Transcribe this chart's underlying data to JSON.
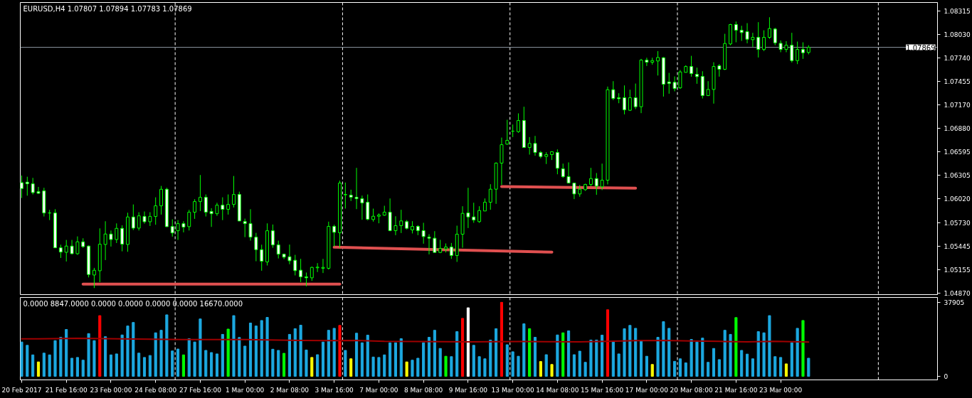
{
  "chart_data": [
    {
      "type": "candlestick",
      "title": "EURUSD,H4 1.07807 1.07894 1.07783 1.07869",
      "tick_labels": "y",
      "grid": false,
      "categories": [
        null,
        null,
        null,
        null,
        null,
        null,
        null,
        null,
        null,
        null,
        null,
        null,
        null,
        null,
        null,
        null,
        null,
        null,
        null,
        null,
        null,
        null,
        null,
        null,
        null,
        null,
        null,
        null,
        null,
        null,
        null,
        null,
        null,
        null,
        null,
        null,
        null,
        null,
        null,
        null,
        null,
        null,
        null,
        null,
        null,
        null,
        null,
        null,
        null,
        null,
        null,
        null,
        null,
        null,
        null,
        null,
        null,
        null,
        null,
        null,
        null,
        null,
        null,
        null,
        null,
        null,
        null,
        null,
        null,
        null,
        null,
        null,
        null,
        null,
        null,
        null,
        null,
        null,
        null,
        null,
        null,
        null,
        null,
        null,
        null,
        null,
        null,
        null,
        null,
        null,
        null,
        null,
        null,
        null,
        null,
        null,
        null,
        null,
        null,
        null,
        null,
        null,
        null,
        null,
        null,
        null,
        null,
        null,
        null,
        null,
        null,
        null,
        null,
        null,
        null,
        null,
        null,
        null,
        null,
        null,
        null,
        null,
        null,
        null,
        null,
        null,
        null,
        null,
        null,
        null,
        null,
        null,
        null,
        null,
        null,
        null,
        null,
        null,
        null,
        null,
        null,
        null,
        null,
        null,
        null,
        null,
        null,
        null,
        null,
        null,
        null,
        null,
        null,
        null,
        null,
        null,
        null,
        null,
        null,
        null,
        null,
        null,
        null,
        null,
        null
      ],
      "ylim": [
        1.04852,
        1.08416
      ],
      "yticks": [
        {
          "value": 1.0487,
          "label": "1.04870"
        },
        {
          "value": 1.05155,
          "label": "1.05155"
        },
        {
          "value": 1.05445,
          "label": "1.05445"
        },
        {
          "value": 1.0573,
          "label": "1.05730"
        },
        {
          "value": 1.0602,
          "label": "1.06020"
        },
        {
          "value": 1.06305,
          "label": "1.06305"
        },
        {
          "value": 1.06595,
          "label": "1.06595"
        },
        {
          "value": 1.0688,
          "label": "1.06880"
        },
        {
          "value": 1.0717,
          "label": "1.07170"
        },
        {
          "value": 1.07455,
          "label": "1.07455"
        },
        {
          "value": 1.0774,
          "label": "1.07740"
        },
        {
          "value": 1.0803,
          "label": "1.08030"
        },
        {
          "value": 1.08315,
          "label": "1.08315"
        }
      ],
      "ohlc": [
        [
          1.06218,
          1.06305,
          1.0603,
          1.06146
        ],
        [
          1.06224,
          1.0629,
          1.06059,
          1.06204
        ],
        [
          1.06204,
          1.06276,
          1.06074,
          1.06097
        ],
        [
          1.06108,
          1.06166,
          1.06079,
          1.06088
        ],
        [
          1.06117,
          1.06155,
          1.05805,
          1.05848
        ],
        [
          1.05848,
          1.05886,
          1.05761,
          1.05848
        ],
        [
          1.05848,
          1.05894,
          1.0542,
          1.05423
        ],
        [
          1.05423,
          1.05461,
          1.05299,
          1.05371
        ],
        [
          1.05368,
          1.05519,
          1.05256,
          1.05444
        ],
        [
          1.05444,
          1.05519,
          1.05345,
          1.05351
        ],
        [
          1.05351,
          1.05562,
          1.05337,
          1.05496
        ],
        [
          1.05496,
          1.05539,
          1.05423,
          1.05438
        ],
        [
          1.05444,
          1.05452,
          1.05062,
          1.05097
        ],
        [
          1.05091,
          1.05178,
          1.04932,
          1.05149
        ],
        [
          1.05143,
          1.0566,
          1.05004,
          1.05467
        ],
        [
          1.05464,
          1.05747,
          1.05273,
          1.05591
        ],
        [
          1.05591,
          1.05634,
          1.05438,
          1.05524
        ],
        [
          1.05524,
          1.05721,
          1.05481,
          1.0566
        ],
        [
          1.0566,
          1.05698,
          1.0538,
          1.05467
        ],
        [
          1.05464,
          1.05851,
          1.05374,
          1.05799
        ],
        [
          1.05799,
          1.05952,
          1.0564,
          1.05663
        ],
        [
          1.05663,
          1.05857,
          1.05634,
          1.05813
        ],
        [
          1.05805,
          1.05866,
          1.05718,
          1.05741
        ],
        [
          1.05741,
          1.05857,
          1.05689,
          1.05805
        ],
        [
          1.05805,
          1.06039,
          1.05704,
          1.05935
        ],
        [
          1.05935,
          1.06178,
          1.05828,
          1.06137
        ],
        [
          1.06137,
          1.06155,
          1.05678,
          1.05681
        ],
        [
          1.05683,
          1.0577,
          1.05559,
          1.05605
        ],
        [
          1.05631,
          1.05761,
          1.05519,
          1.05718
        ],
        [
          1.05718,
          1.05747,
          1.05611,
          1.05675
        ],
        [
          1.05681,
          1.05886,
          1.05634,
          1.05857
        ],
        [
          1.05857,
          1.06016,
          1.05776,
          1.05987
        ],
        [
          1.05987,
          1.06311,
          1.05871,
          1.06039
        ],
        [
          1.06039,
          1.06074,
          1.05805,
          1.05857
        ],
        [
          1.05866,
          1.05906,
          1.05678,
          1.05839
        ],
        [
          1.05839,
          1.05972,
          1.05813,
          1.05943
        ],
        [
          1.05943,
          1.06039,
          1.05761,
          1.05892
        ],
        [
          1.05892,
          1.06074,
          1.05828,
          1.05952
        ],
        [
          1.05952,
          1.06299,
          1.05915,
          1.06074
        ],
        [
          1.06074,
          1.06108,
          1.0575,
          1.0575
        ],
        [
          1.05744,
          1.05779,
          1.05553,
          1.05718
        ],
        [
          1.05718,
          1.05894,
          1.0551,
          1.05553
        ],
        [
          1.05553,
          1.05605,
          1.05259,
          1.054
        ],
        [
          1.054,
          1.05461,
          1.05143,
          1.05259
        ],
        [
          1.0525,
          1.05721,
          1.05207,
          1.05631
        ],
        [
          1.05631,
          1.05707,
          1.05423,
          1.05458
        ],
        [
          1.05458,
          1.0551,
          1.05293,
          1.05345
        ],
        [
          1.05346,
          1.05352,
          1.05285,
          1.05309
        ],
        [
          1.05314,
          1.05462,
          1.05222,
          1.05265
        ],
        [
          1.05271,
          1.05337,
          1.05086,
          1.05144
        ],
        [
          1.0515,
          1.05288,
          1.05005,
          1.05069
        ],
        [
          1.05069,
          1.05121,
          1.04953,
          1.05057
        ],
        [
          1.05057,
          1.05193,
          1.0502,
          1.05184
        ],
        [
          1.05179,
          1.05236,
          1.05127,
          1.05187
        ],
        [
          1.05173,
          1.05288,
          1.05115,
          1.05184
        ],
        [
          1.05173,
          1.05742,
          1.05158,
          1.05684
        ],
        [
          1.05684,
          1.05705,
          1.05439,
          1.05612
        ],
        [
          1.05606,
          1.06242,
          1.05424,
          1.06213
        ],
        [
          1.06069,
          1.06219,
          1.05901,
          1.06074
        ],
        [
          1.06066,
          1.06132,
          1.05994,
          1.0604
        ],
        [
          1.0604,
          1.06398,
          1.05895,
          1.06022
        ],
        [
          1.06022,
          1.0606,
          1.05765,
          1.0597
        ],
        [
          1.05979,
          1.06074,
          1.05757,
          1.05771
        ],
        [
          1.05768,
          1.05901,
          1.05742,
          1.05808
        ],
        [
          1.05808,
          1.05843,
          1.05722,
          1.05823
        ],
        [
          1.0582,
          1.05936,
          1.05814,
          1.05858
        ],
        [
          1.05858,
          1.06025,
          1.05626,
          1.05632
        ],
        [
          1.05632,
          1.05808,
          1.05577,
          1.05693
        ],
        [
          1.05693,
          1.05887,
          1.05603,
          1.05751
        ],
        [
          1.05742,
          1.05762,
          1.05647,
          1.05661
        ],
        [
          1.05641,
          1.05748,
          1.05598,
          1.05684
        ],
        [
          1.05684,
          1.05699,
          1.05577,
          1.05632
        ],
        [
          1.05632,
          1.05728,
          1.05473,
          1.0556
        ],
        [
          1.05554,
          1.05589,
          1.05343,
          1.0554
        ],
        [
          1.0554,
          1.05626,
          1.05366,
          1.05366
        ],
        [
          1.05366,
          1.0552,
          1.05358,
          1.05416
        ],
        [
          1.0541,
          1.05476,
          1.05366,
          1.05433
        ],
        [
          1.05433,
          1.05482,
          1.05288,
          1.05329
        ],
        [
          1.05329,
          1.05693,
          1.05251,
          1.05589
        ],
        [
          1.05589,
          1.0593,
          1.05424,
          1.05843
        ],
        [
          1.05849,
          1.06155,
          1.05664,
          1.058
        ],
        [
          1.058,
          1.05973,
          1.05728,
          1.05762
        ],
        [
          1.05742,
          1.0593,
          1.05728,
          1.05878
        ],
        [
          1.05872,
          1.06025,
          1.05872,
          1.05979
        ],
        [
          1.05979,
          1.06199,
          1.05887,
          1.06138
        ],
        [
          1.06138,
          1.06465,
          1.05959,
          1.06456
        ],
        [
          1.06456,
          1.06768,
          1.0619,
          1.06681
        ],
        [
          1.06687,
          1.06985,
          1.06682,
          1.06734
        ],
        [
          1.06846,
          1.06927,
          1.06774,
          1.06846
        ],
        [
          1.0684,
          1.07063,
          1.06826,
          1.06976
        ],
        [
          1.06976,
          1.07144,
          1.06644,
          1.06647
        ],
        [
          1.06647,
          1.06774,
          1.0656,
          1.06696
        ],
        [
          1.06696,
          1.06788,
          1.06546,
          1.06586
        ],
        [
          1.06586,
          1.06604,
          1.06514,
          1.06537
        ],
        [
          1.06537,
          1.06589,
          1.06445,
          1.0656
        ],
        [
          1.0656,
          1.06601,
          1.06494,
          1.06595
        ],
        [
          1.06586,
          1.06624,
          1.0632,
          1.06393
        ],
        [
          1.06387,
          1.0645,
          1.06277,
          1.06291
        ],
        [
          1.06291,
          1.06465,
          1.0621,
          1.06213
        ],
        [
          1.06213,
          1.06213,
          1.06017,
          1.0608
        ],
        [
          1.0608,
          1.0619,
          1.06046,
          1.06138
        ],
        [
          1.06132,
          1.06205,
          1.06118,
          1.06196
        ],
        [
          1.06196,
          1.06398,
          1.06176,
          1.06268
        ],
        [
          1.06268,
          1.06335,
          1.06069,
          1.06176
        ],
        [
          1.06167,
          1.0645,
          1.06127,
          1.06248
        ],
        [
          1.06248,
          1.0739,
          1.06196,
          1.07352
        ],
        [
          1.07352,
          1.07456,
          1.07225,
          1.07245
        ],
        [
          1.07254,
          1.07309,
          1.07187,
          1.07242
        ],
        [
          1.07254,
          1.07404,
          1.07051,
          1.07106
        ],
        [
          1.07101,
          1.07352,
          1.07092,
          1.07254
        ],
        [
          1.07254,
          1.07427,
          1.07115,
          1.07144
        ],
        [
          1.07144,
          1.07728,
          1.07066,
          1.07713
        ],
        [
          1.07713,
          1.07742,
          1.07641,
          1.07687
        ],
        [
          1.07687,
          1.07742,
          1.07658,
          1.07707
        ],
        [
          1.07702,
          1.07823,
          1.07525,
          1.07745
        ],
        [
          1.07742,
          1.07751,
          1.07268,
          1.07418
        ],
        [
          1.07447,
          1.07557,
          1.07303,
          1.07427
        ],
        [
          1.07442,
          1.07514,
          1.07332,
          1.07366
        ],
        [
          1.07375,
          1.07592,
          1.07361,
          1.07569
        ],
        [
          1.07563,
          1.0765,
          1.07563,
          1.07635
        ],
        [
          1.07635,
          1.07765,
          1.07511,
          1.07549
        ],
        [
          1.0754,
          1.07621,
          1.07424,
          1.07511
        ],
        [
          1.07514,
          1.07577,
          1.07245,
          1.0728
        ],
        [
          1.0728,
          1.07456,
          1.07274,
          1.07355
        ],
        [
          1.07355,
          1.07687,
          1.07182,
          1.07635
        ],
        [
          1.07644,
          1.07664,
          1.07511,
          1.07601
        ],
        [
          1.07601,
          1.08034,
          1.07592,
          1.07916
        ],
        [
          1.0791,
          1.08155,
          1.07895,
          1.08147
        ],
        [
          1.08147,
          1.08184,
          1.0793,
          1.08077
        ],
        [
          1.08077,
          1.08132,
          1.07947,
          1.08049
        ],
        [
          1.0806,
          1.08164,
          1.07918,
          1.07968
        ],
        [
          1.07962,
          1.08046,
          1.07875,
          1.07991
        ],
        [
          1.07991,
          1.08176,
          1.07745,
          1.07843
        ],
        [
          1.07843,
          1.08077,
          1.07823,
          1.07991
        ],
        [
          1.07991,
          1.08236,
          1.07973,
          1.08098
        ],
        [
          1.08092,
          1.08106,
          1.07895,
          1.07924
        ],
        [
          1.07918,
          1.07953,
          1.07809,
          1.07843
        ],
        [
          1.07843,
          1.07944,
          1.07809,
          1.07895
        ],
        [
          1.07895,
          1.08046,
          1.07684,
          1.07707
        ],
        [
          1.07707,
          1.07939,
          1.07664,
          1.07843
        ],
        [
          1.07843,
          1.0793,
          1.07728,
          1.07803
        ],
        [
          1.07807,
          1.07894,
          1.07783,
          1.07869
        ],
        null,
        null,
        null,
        null,
        null,
        null,
        null,
        null,
        null,
        null,
        null,
        null,
        null,
        null,
        null,
        null,
        null,
        null,
        null,
        null,
        null,
        null,
        null
      ],
      "series": [
        {
          "type": "line",
          "color": "#e05050",
          "values": [
            null,
            null,
            null,
            null,
            null,
            null,
            null,
            null,
            null,
            null,
            null,
            1.0498,
            null,
            null,
            null,
            null,
            null,
            null,
            null,
            null,
            null,
            null,
            null,
            null,
            null,
            null,
            null,
            null,
            null,
            null,
            null,
            null,
            null,
            null,
            null,
            null,
            null,
            null,
            null,
            null,
            null,
            null,
            null,
            null,
            null,
            null,
            null,
            null,
            null,
            null,
            null,
            null,
            null,
            null,
            null,
            null,
            null,
            1.0498,
            null,
            null,
            null,
            null,
            null,
            null,
            null,
            null,
            null,
            null,
            null,
            null,
            null,
            null,
            null,
            null,
            null,
            null,
            null,
            null,
            null,
            null,
            null,
            null,
            null,
            null,
            null,
            null,
            null,
            null,
            null,
            null,
            null,
            null,
            null,
            null,
            null,
            null,
            null,
            null,
            null,
            null,
            null,
            null,
            null,
            null,
            null,
            null,
            null,
            null,
            null,
            null,
            null,
            null,
            null,
            null,
            null,
            null,
            null,
            null,
            null,
            null,
            null,
            null,
            null,
            null,
            null,
            null,
            null,
            null,
            null,
            null,
            null,
            null,
            null,
            null,
            null,
            null,
            null,
            null,
            null,
            null,
            null,
            null,
            null,
            null,
            null,
            null,
            null,
            null,
            null,
            null,
            null,
            null,
            null,
            null,
            null,
            null,
            null,
            null,
            null,
            null,
            null,
            null,
            null,
            null,
            null
          ]
        },
        {
          "type": "line",
          "color": "#e05050",
          "values": [
            null,
            null,
            null,
            null,
            null,
            null,
            null,
            null,
            null,
            null,
            null,
            null,
            null,
            null,
            null,
            null,
            null,
            null,
            null,
            null,
            null,
            null,
            null,
            null,
            null,
            null,
            null,
            null,
            null,
            null,
            null,
            null,
            null,
            null,
            null,
            null,
            null,
            null,
            null,
            null,
            null,
            null,
            null,
            null,
            null,
            null,
            null,
            null,
            null,
            null,
            null,
            null,
            null,
            null,
            null,
            null,
            1.0543,
            null,
            null,
            null,
            null,
            null,
            null,
            null,
            null,
            null,
            null,
            null,
            null,
            null,
            null,
            null,
            null,
            null,
            null,
            null,
            null,
            null,
            null,
            null,
            null,
            null,
            null,
            null,
            null,
            null,
            null,
            null,
            null,
            null,
            null,
            null,
            null,
            null,
            null,
            1.0537,
            null,
            null,
            null,
            null,
            null,
            null,
            null,
            null,
            null,
            null,
            null,
            null,
            null,
            null,
            null,
            null,
            null,
            null,
            null,
            null,
            null,
            null,
            null,
            null,
            null,
            null,
            null,
            null,
            null,
            null,
            null,
            null,
            null,
            null,
            null,
            null,
            null,
            null,
            null,
            null,
            null,
            null,
            null,
            null,
            null,
            null,
            null,
            null,
            null,
            null,
            null,
            null,
            null,
            null,
            null,
            null,
            null,
            null,
            null,
            null,
            null,
            null,
            null,
            null,
            null,
            null,
            null,
            null,
            null
          ]
        },
        {
          "type": "line",
          "color": "#e05050",
          "values": [
            null,
            null,
            null,
            null,
            null,
            null,
            null,
            null,
            null,
            null,
            null,
            null,
            null,
            null,
            null,
            null,
            null,
            null,
            null,
            null,
            null,
            null,
            null,
            null,
            null,
            null,
            null,
            null,
            null,
            null,
            null,
            null,
            null,
            null,
            null,
            null,
            null,
            null,
            null,
            null,
            null,
            null,
            null,
            null,
            null,
            null,
            null,
            null,
            null,
            null,
            null,
            null,
            null,
            null,
            null,
            null,
            null,
            null,
            null,
            null,
            null,
            null,
            null,
            null,
            null,
            null,
            null,
            null,
            null,
            null,
            null,
            null,
            null,
            null,
            null,
            null,
            null,
            null,
            null,
            null,
            null,
            null,
            null,
            null,
            null,
            null,
            1.0617,
            null,
            null,
            null,
            null,
            null,
            null,
            null,
            null,
            null,
            null,
            null,
            null,
            null,
            null,
            null,
            null,
            null,
            null,
            null,
            null,
            null,
            null,
            null,
            1.0615,
            null,
            null,
            null,
            null,
            null,
            null,
            null,
            null,
            null,
            null,
            null,
            null,
            null,
            null,
            null,
            null,
            null,
            null,
            null,
            null,
            null,
            null,
            null,
            null,
            null,
            null,
            null,
            null,
            null,
            null,
            null,
            null,
            null,
            null,
            null,
            null,
            null,
            null,
            null,
            null,
            null,
            null,
            null,
            null,
            null,
            null,
            null,
            null,
            null,
            null,
            null,
            null,
            null,
            null
          ]
        }
      ],
      "ref_lines": [
        {
          "axis": "y",
          "value": 1.07869,
          "label": "1.07869",
          "color": "#8c96a0",
          "line_style": "solid"
        }
      ]
    },
    {
      "type": "bar",
      "title": "0.0000 8847.0000 0.0000 0.0000 0.0000 0.0000 16670.0000",
      "grid": false,
      "ylim": [
        -1800,
        40400
      ],
      "yticks": [
        {
          "value": 0,
          "label": "0"
        },
        37905
      ],
      "categories": [
        "20 Feb 2017",
        null,
        null,
        null,
        null,
        null,
        null,
        null,
        "21 Feb 16:00",
        null,
        null,
        null,
        null,
        null,
        null,
        null,
        "23 Feb 00:00",
        null,
        null,
        null,
        null,
        null,
        null,
        null,
        "24 Feb 08:00",
        null,
        null,
        null,
        null,
        null,
        null,
        null,
        "27 Feb 16:00",
        null,
        null,
        null,
        null,
        null,
        null,
        null,
        "1 Mar 00:00",
        null,
        null,
        null,
        null,
        null,
        null,
        null,
        "2 Mar 08:00",
        null,
        null,
        null,
        null,
        null,
        null,
        null,
        "3 Mar 16:00",
        null,
        null,
        null,
        null,
        null,
        null,
        null,
        "7 Mar 00:00",
        null,
        null,
        null,
        null,
        null,
        null,
        null,
        "8 Mar 08:00",
        null,
        null,
        null,
        null,
        null,
        null,
        null,
        "9 Mar 16:00",
        null,
        null,
        null,
        null,
        null,
        null,
        null,
        "13 Mar 00:00",
        null,
        null,
        null,
        null,
        null,
        null,
        null,
        "14 Mar 08:00",
        null,
        null,
        null,
        null,
        null,
        null,
        null,
        "15 Mar 16:00",
        null,
        null,
        null,
        null,
        null,
        null,
        null,
        "17 Mar 00:00",
        null,
        null,
        null,
        null,
        null,
        null,
        null,
        "20 Mar 08:00",
        null,
        null,
        null,
        null,
        null,
        null,
        null,
        "21 Mar 16:00",
        null,
        null,
        null,
        null,
        null,
        null,
        null,
        "23 Mar 00:00",
        null,
        null,
        null,
        null,
        null,
        null,
        null,
        null,
        null,
        null,
        null,
        null,
        null,
        null,
        null,
        null,
        null,
        null,
        null,
        null,
        null,
        null,
        null,
        null,
        null,
        null,
        null,
        null
      ],
      "series": [
        {
          "type": "bar",
          "values": [
            17600,
            15900,
            11000,
            7400,
            11900,
            11000,
            18300,
            20000,
            24000,
            9300,
            9700,
            8300,
            21900,
            18300,
            31100,
            20300,
            11000,
            11500,
            21200,
            25800,
            27600,
            11900,
            9700,
            10700,
            22300,
            23600,
            31500,
            13000,
            14000,
            11000,
            19300,
            17600,
            29400,
            13300,
            12200,
            11500,
            21500,
            24200,
            31100,
            19900,
            15500,
            27300,
            25800,
            28600,
            30200,
            13900,
            13300,
            11800,
            21500,
            24400,
            26200,
            13500,
            9700,
            11100,
            17600,
            23600,
            24600,
            26100,
            13300,
            9000,
            22100,
            17200,
            21100,
            9900,
            9700,
            11000,
            17200,
            17200,
            19300,
            7400,
            8300,
            9300,
            17200,
            20000,
            23600,
            14300,
            10300,
            10100,
            22900,
            29700,
            35100,
            15900,
            10100,
            9000,
            18600,
            24400,
            37900,
            16200,
            12600,
            10300,
            26900,
            24400,
            20000,
            7600,
            11100,
            6100,
            21200,
            22300,
            23300,
            11100,
            12900,
            7200,
            18600,
            18600,
            21100,
            34100,
            17600,
            11500,
            24400,
            26100,
            24600,
            18000,
            10300,
            6100,
            20000,
            28000,
            24600,
            7700,
            9000,
            6900,
            18900,
            17600,
            19600,
            7200,
            14300,
            8600,
            23600,
            21500,
            30100,
            13300,
            11400,
            9000,
            22900,
            22300,
            31100,
            10100,
            9700,
            6400,
            17200,
            24600,
            28600,
            9300,
            null,
            null,
            null,
            null,
            null,
            null,
            null,
            null,
            null,
            null,
            null,
            null,
            null,
            null,
            null,
            null,
            null,
            null,
            null,
            null,
            null,
            null,
            null
          ],
          "colors": [
            "#1ca8e0",
            "#1ca8e0",
            "#1ca8e0",
            "#ffff00",
            "#1ca8e0",
            "#1ca8e0",
            "#1ca8e0",
            "#1ca8e0",
            "#1ca8e0",
            "#1ca8e0",
            "#1ca8e0",
            "#1ca8e0",
            "#1ca8e0",
            "#1ca8e0",
            "#ff0000",
            "#1ca8e0",
            "#1ca8e0",
            "#1ca8e0",
            "#1ca8e0",
            "#1ca8e0",
            "#1ca8e0",
            "#1ca8e0",
            "#1ca8e0",
            "#1ca8e0",
            "#1ca8e0",
            "#1ca8e0",
            "#1ca8e0",
            "#1ca8e0",
            "#1ca8e0",
            "#00ff00",
            "#1ca8e0",
            "#1ca8e0",
            "#1ca8e0",
            "#1ca8e0",
            "#1ca8e0",
            "#1ca8e0",
            "#1ca8e0",
            "#00ff00",
            "#1ca8e0",
            "#1ca8e0",
            "#1ca8e0",
            "#1ca8e0",
            "#1ca8e0",
            "#1ca8e0",
            "#1ca8e0",
            "#1ca8e0",
            "#1ca8e0",
            "#00ff00",
            "#1ca8e0",
            "#1ca8e0",
            "#1ca8e0",
            "#1ca8e0",
            "#ffff00",
            "#1ca8e0",
            "#1ca8e0",
            "#1ca8e0",
            "#1ca8e0",
            "#ff0000",
            "#1ca8e0",
            "#ffff00",
            "#1ca8e0",
            "#1ca8e0",
            "#1ca8e0",
            "#1ca8e0",
            "#1ca8e0",
            "#1ca8e0",
            "#1ca8e0",
            "#1ca8e0",
            "#1ca8e0",
            "#ffff00",
            "#1ca8e0",
            "#1ca8e0",
            "#1ca8e0",
            "#1ca8e0",
            "#1ca8e0",
            "#1ca8e0",
            "#00ff00",
            "#1ca8e0",
            "#1ca8e0",
            "#ff0000",
            "#ffffff",
            "#1ca8e0",
            "#1ca8e0",
            "#1ca8e0",
            "#1ca8e0",
            "#1ca8e0",
            "#ff0000",
            "#1ca8e0",
            "#1ca8e0",
            "#1ca8e0",
            "#1ca8e0",
            "#00ff00",
            "#1ca8e0",
            "#ffff00",
            "#1ca8e0",
            "#ffff00",
            "#1ca8e0",
            "#00ff00",
            "#1ca8e0",
            "#1ca8e0",
            "#1ca8e0",
            "#1ca8e0",
            "#1ca8e0",
            "#1ca8e0",
            "#1ca8e0",
            "#ff0000",
            "#1ca8e0",
            "#1ca8e0",
            "#1ca8e0",
            "#1ca8e0",
            "#1ca8e0",
            "#1ca8e0",
            "#1ca8e0",
            "#ffff00",
            "#1ca8e0",
            "#1ca8e0",
            "#1ca8e0",
            "#1ca8e0",
            "#1ca8e0",
            "#1ca8e0",
            "#1ca8e0",
            "#1ca8e0",
            "#1ca8e0",
            "#1ca8e0",
            "#1ca8e0",
            "#1ca8e0",
            "#1ca8e0",
            "#1ca8e0",
            "#00ff00",
            "#1ca8e0",
            "#1ca8e0",
            "#1ca8e0",
            "#1ca8e0",
            "#1ca8e0",
            "#1ca8e0",
            "#1ca8e0",
            "#1ca8e0",
            "#ffff00",
            "#1ca8e0",
            "#1ca8e0",
            "#00ff00",
            "#1ca8e0",
            null,
            null,
            null,
            null,
            null,
            null,
            null,
            null,
            null,
            null,
            null,
            null,
            null,
            null,
            null,
            null,
            null,
            null,
            null,
            null,
            null,
            null,
            null
          ]
        },
        {
          "type": "line",
          "color": "#a00000",
          "values": [
            19200,
            null,
            null,
            19200,
            null,
            null,
            null,
            null,
            null,
            null,
            19500,
            null,
            null,
            null,
            null,
            null,
            null,
            null,
            null,
            null,
            19100,
            null,
            null,
            null,
            null,
            null,
            18900,
            null,
            null,
            null,
            18800,
            null,
            null,
            null,
            null,
            null,
            null,
            null,
            null,
            null,
            18800,
            null,
            null,
            null,
            null,
            null,
            null,
            null,
            null,
            null,
            18400,
            null,
            null,
            null,
            null,
            18300,
            null,
            null,
            null,
            null,
            18400,
            null,
            null,
            null,
            null,
            17900,
            null,
            null,
            null,
            null,
            null,
            17800,
            null,
            null,
            null,
            null,
            null,
            null,
            null,
            null,
            17700,
            null,
            null,
            null,
            null,
            null,
            null,
            null,
            null,
            null,
            17800,
            null,
            null,
            null,
            null,
            null,
            null,
            null,
            null,
            null,
            17700,
            null,
            null,
            null,
            null,
            17900,
            null,
            null,
            null,
            null,
            18300,
            null,
            null,
            null,
            null,
            18400,
            null,
            null,
            null,
            null,
            18100,
            null,
            null,
            null,
            null,
            17900,
            null,
            null,
            null,
            null,
            17700,
            null,
            null,
            null,
            null,
            17900,
            null,
            null,
            null,
            null,
            null,
            17600,
            null,
            null,
            null,
            null,
            null,
            null,
            null,
            null,
            null,
            null,
            null,
            null,
            null,
            null,
            null,
            null,
            null,
            null,
            null,
            null,
            null,
            null,
            null
          ]
        }
      ]
    }
  ]
}
